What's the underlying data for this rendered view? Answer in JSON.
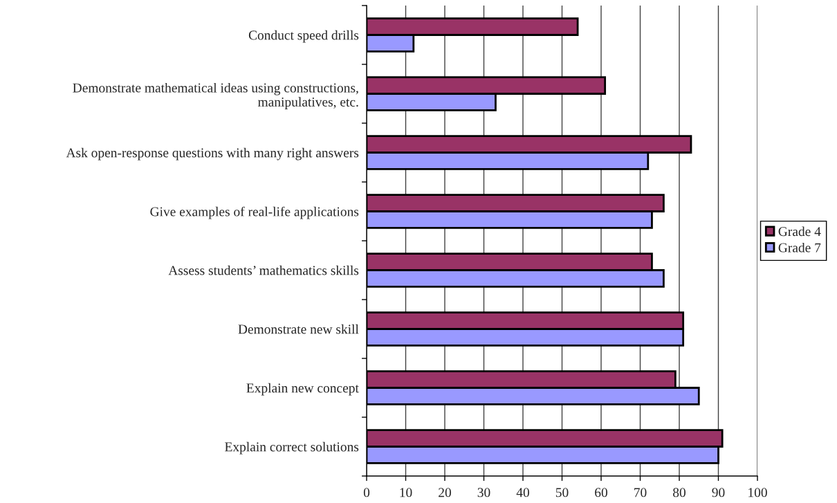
{
  "chart_data": {
    "type": "bar",
    "orientation": "horizontal",
    "categories": [
      "Conduct speed drills",
      "Demonstrate mathematical ideas using constructions,\nmanipulatives, etc.",
      "Ask open-response questions with many right answers",
      "Give examples of real-life applications",
      "Assess students’ mathematics skills",
      "Demonstrate new skill",
      "Explain new concept",
      "Explain correct solutions"
    ],
    "series": [
      {
        "name": "Grade 4",
        "color": "#993366",
        "values": [
          54,
          61,
          83,
          76,
          73,
          81,
          79,
          91
        ]
      },
      {
        "name": "Grade 7",
        "color": "#9999ff",
        "values": [
          12,
          33,
          72,
          73,
          76,
          81,
          85,
          90
        ]
      }
    ],
    "xlim": [
      0,
      100
    ],
    "xticks": [
      0,
      10,
      20,
      30,
      40,
      50,
      60,
      70,
      80,
      90,
      100
    ],
    "grid": "x",
    "legend": "right"
  }
}
